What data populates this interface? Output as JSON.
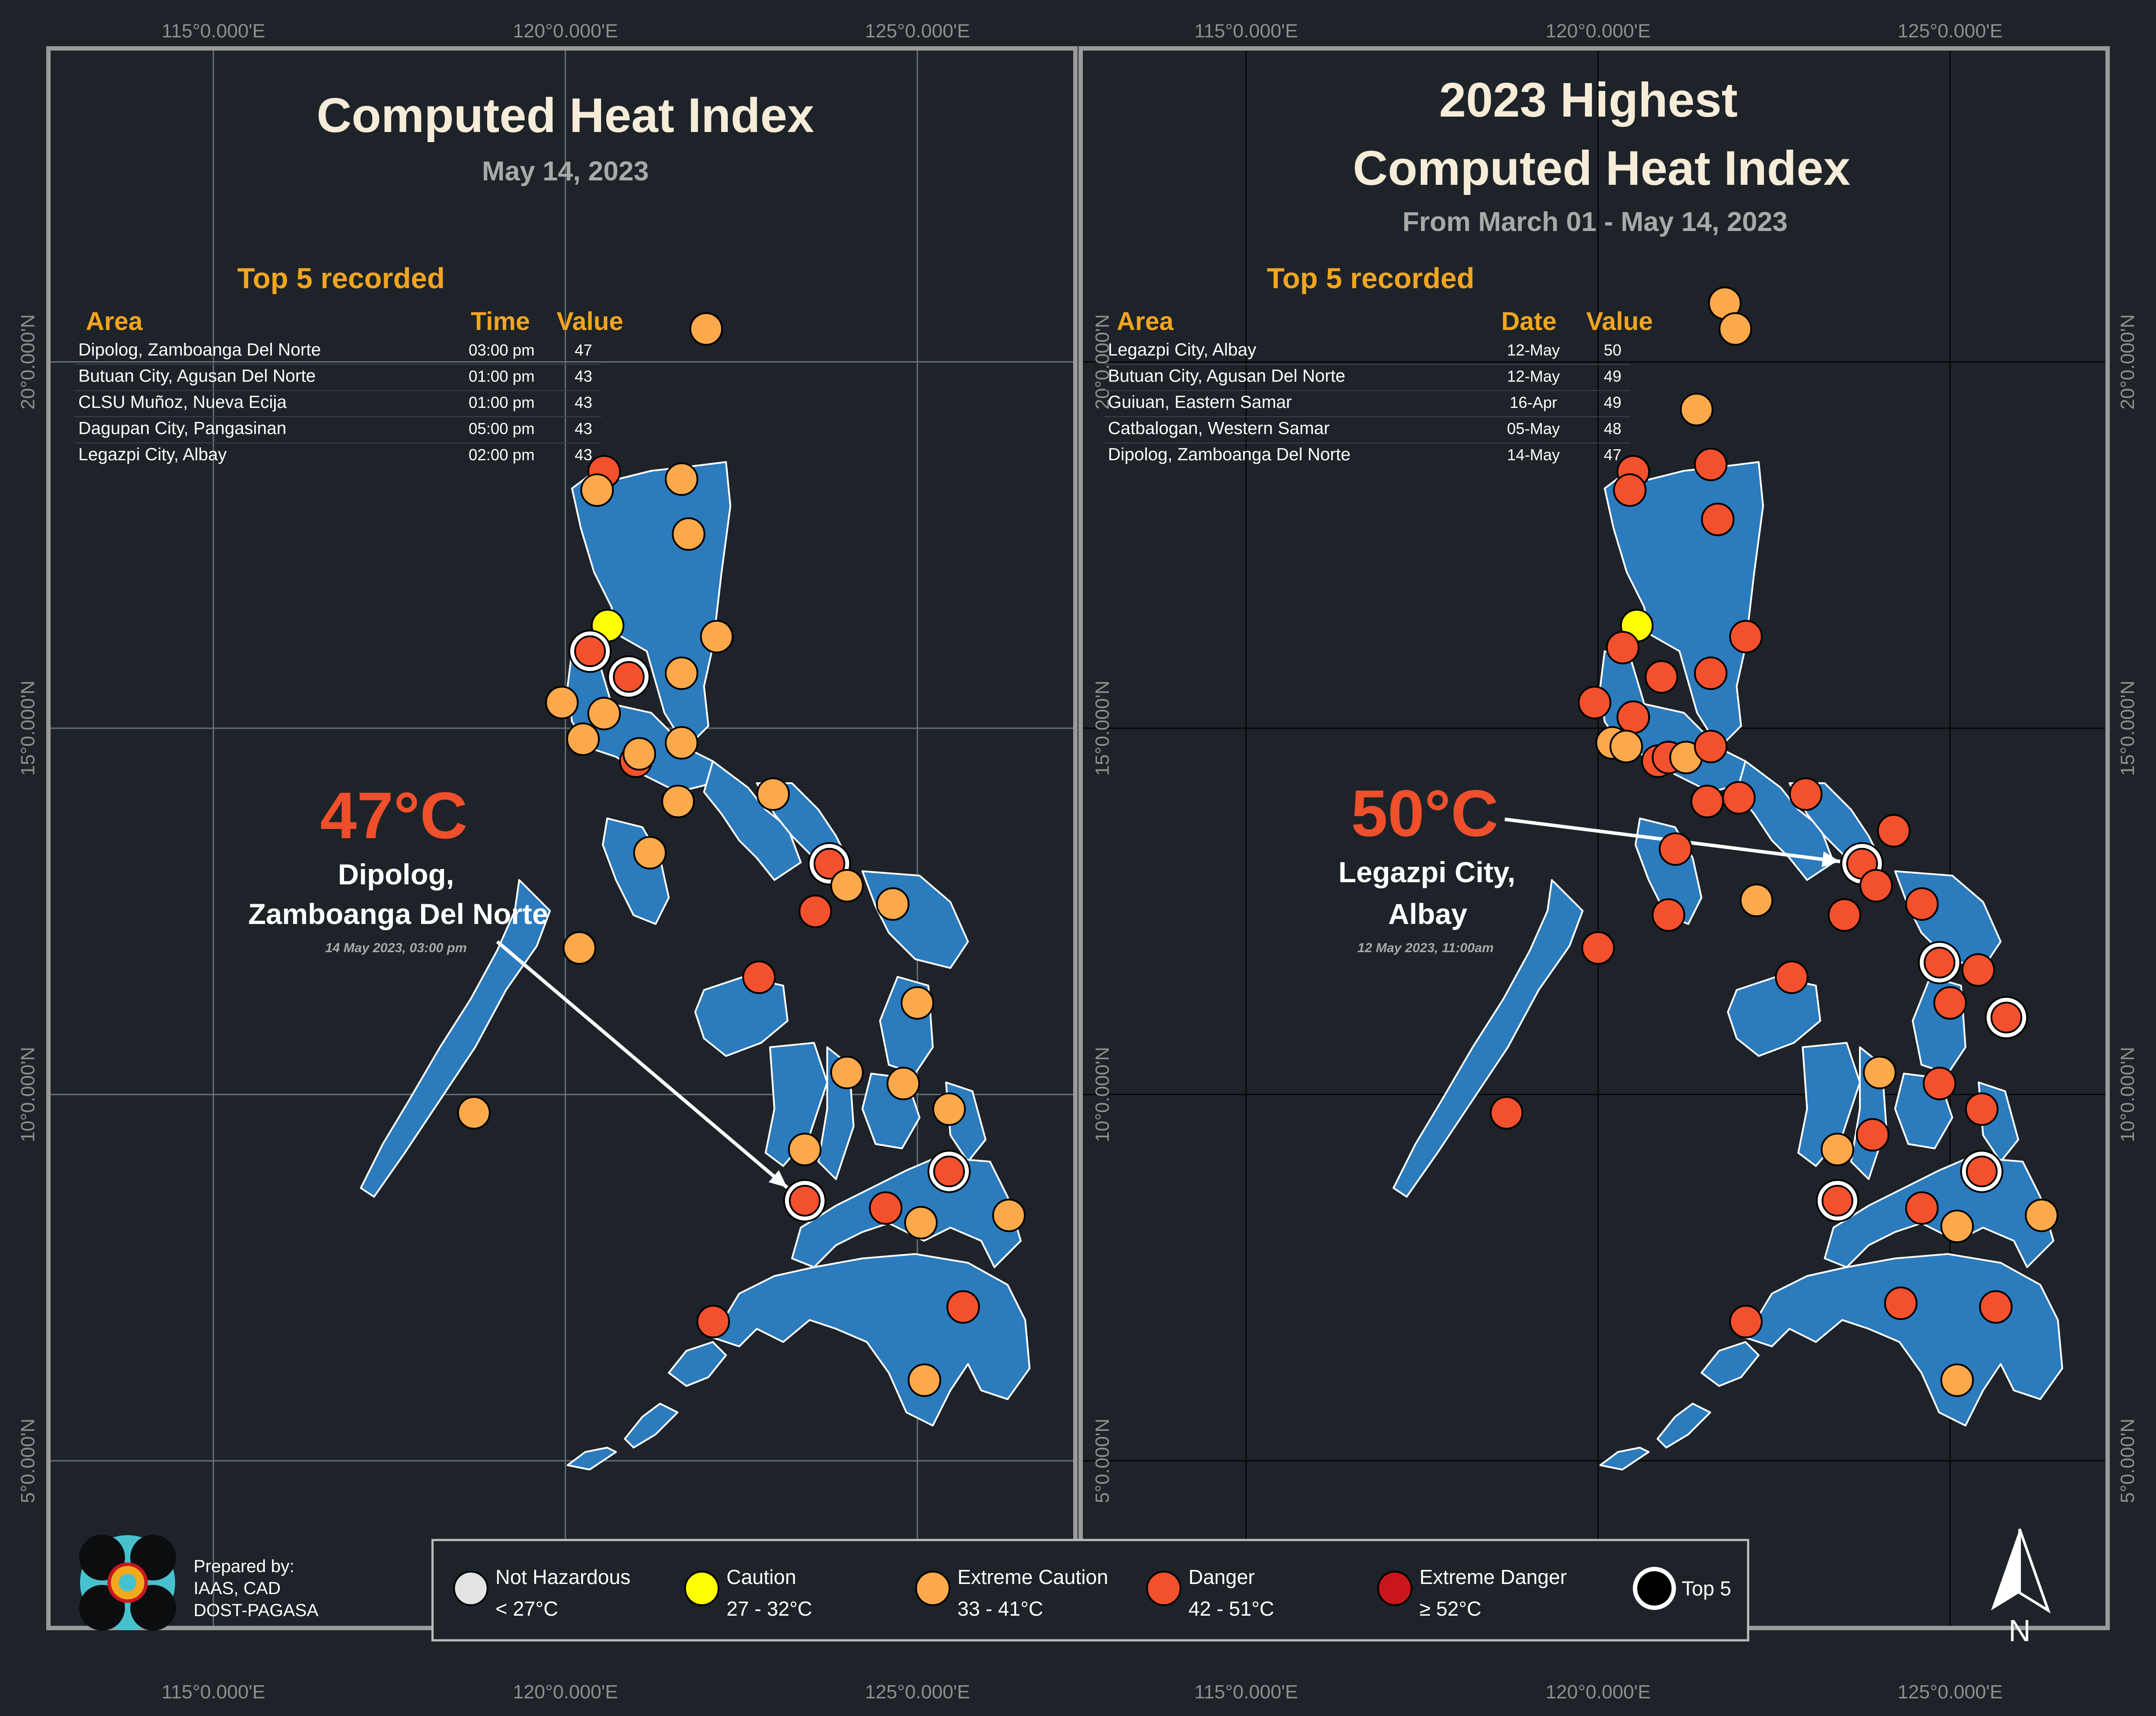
{
  "colors": {
    "background": "#1d2328",
    "land": "#2b7bbd",
    "frame": "#9a9a9a",
    "title": "#f6ecd8",
    "subtitle": "#a9a9a9",
    "accent": "#f2a521",
    "highlight_temp": "#f04f2b",
    "not_hazardous": "#e3e3e3",
    "caution": "#ffff00",
    "extreme_caution": "#fca94b",
    "danger": "#f3502d",
    "extreme_danger": "#c9161b"
  },
  "grid_labels": {
    "top": [
      "115°0.000'E",
      "120°0.000'E",
      "125°0.000'E",
      "115°0.000'E",
      "120°0.000'E",
      "125°0.000'E"
    ],
    "bottom": [
      "115°0.000'E",
      "120°0.000'E",
      "125°0.000'E",
      "115°0.000'E",
      "120°0.000'E",
      "125°0.000'E"
    ],
    "left": [
      "20°0.000'N",
      "15°0.000'N",
      "10°0.000'N",
      "5°0.000'N"
    ],
    "right": [
      "20°0.000'N",
      "15°0.000'N",
      "10°0.000'N",
      "5°0.000'N"
    ]
  },
  "left_panel": {
    "title": "Computed Heat Index",
    "subtitle": "May 14, 2023",
    "top5_title": "Top 5 recorded",
    "headers": [
      "Area",
      "Time",
      "Value"
    ],
    "rows": [
      {
        "area": "Dipolog, Zamboanga Del Norte",
        "time": "03:00 pm",
        "value": "47"
      },
      {
        "area": "Butuan City, Agusan Del Norte",
        "time": "01:00 pm",
        "value": "43"
      },
      {
        "area": "CLSU Muñoz, Nueva Ecija",
        "time": "01:00 pm",
        "value": "43"
      },
      {
        "area": "Dagupan City, Pangasinan",
        "time": "05:00 pm",
        "value": "43"
      },
      {
        "area": "Legazpi City, Albay",
        "time": "02:00 pm",
        "value": "43"
      }
    ],
    "highlight": {
      "temp": "47°C",
      "line1": "Dipolog,",
      "line2": "Zamboanga Del Norte",
      "date": "14 May 2023, 03:00 pm"
    },
    "stations": [
      {
        "lon": 122.0,
        "lat": 20.45,
        "c": "extreme_caution"
      },
      {
        "lon": 120.55,
        "lat": 18.5,
        "c": "danger"
      },
      {
        "lon": 120.45,
        "lat": 18.25,
        "c": "extreme_caution"
      },
      {
        "lon": 121.65,
        "lat": 18.4,
        "c": "extreme_caution"
      },
      {
        "lon": 121.75,
        "lat": 17.65,
        "c": "extreme_caution"
      },
      {
        "lon": 120.6,
        "lat": 16.4,
        "c": "caution"
      },
      {
        "lon": 120.35,
        "lat": 16.05,
        "c": "danger",
        "top5": true
      },
      {
        "lon": 120.9,
        "lat": 15.7,
        "c": "danger",
        "top5": true
      },
      {
        "lon": 122.15,
        "lat": 16.25,
        "c": "extreme_caution"
      },
      {
        "lon": 121.65,
        "lat": 15.75,
        "c": "extreme_caution"
      },
      {
        "lon": 119.95,
        "lat": 15.35,
        "c": "extreme_caution"
      },
      {
        "lon": 120.55,
        "lat": 15.2,
        "c": "extreme_caution"
      },
      {
        "lon": 120.25,
        "lat": 14.85,
        "c": "extreme_caution"
      },
      {
        "lon": 121.0,
        "lat": 14.55,
        "c": "danger"
      },
      {
        "lon": 121.05,
        "lat": 14.65,
        "c": "extreme_caution"
      },
      {
        "lon": 121.65,
        "lat": 14.8,
        "c": "extreme_caution"
      },
      {
        "lon": 121.6,
        "lat": 14.0,
        "c": "extreme_caution"
      },
      {
        "lon": 122.95,
        "lat": 14.1,
        "c": "extreme_caution"
      },
      {
        "lon": 121.2,
        "lat": 13.3,
        "c": "extreme_caution"
      },
      {
        "lon": 123.75,
        "lat": 13.15,
        "c": "danger",
        "top5": true
      },
      {
        "lon": 124.0,
        "lat": 12.85,
        "c": "extreme_caution"
      },
      {
        "lon": 124.65,
        "lat": 12.6,
        "c": "extreme_caution"
      },
      {
        "lon": 123.55,
        "lat": 12.5,
        "c": "danger"
      },
      {
        "lon": 120.2,
        "lat": 12.0,
        "c": "extreme_caution"
      },
      {
        "lon": 122.75,
        "lat": 11.6,
        "c": "danger"
      },
      {
        "lon": 125.0,
        "lat": 11.25,
        "c": "extreme_caution"
      },
      {
        "lon": 124.0,
        "lat": 10.3,
        "c": "extreme_caution"
      },
      {
        "lon": 124.8,
        "lat": 10.15,
        "c": "extreme_caution"
      },
      {
        "lon": 125.45,
        "lat": 9.8,
        "c": "extreme_caution"
      },
      {
        "lon": 118.7,
        "lat": 9.75,
        "c": "extreme_caution"
      },
      {
        "lon": 123.4,
        "lat": 9.25,
        "c": "extreme_caution"
      },
      {
        "lon": 125.45,
        "lat": 8.95,
        "c": "danger",
        "top5": true
      },
      {
        "lon": 123.4,
        "lat": 8.55,
        "c": "danger",
        "top5": true
      },
      {
        "lon": 124.55,
        "lat": 8.45,
        "c": "danger"
      },
      {
        "lon": 125.05,
        "lat": 8.25,
        "c": "extreme_caution"
      },
      {
        "lon": 126.3,
        "lat": 8.35,
        "c": "extreme_caution"
      },
      {
        "lon": 125.65,
        "lat": 7.1,
        "c": "danger"
      },
      {
        "lon": 122.1,
        "lat": 6.9,
        "c": "danger"
      },
      {
        "lon": 125.1,
        "lat": 6.1,
        "c": "extreme_caution"
      }
    ]
  },
  "right_panel": {
    "title_line1": "2023 Highest",
    "title_line2": "Computed Heat Index",
    "subtitle": "From March 01 - May 14, 2023",
    "top5_title": "Top 5 recorded",
    "headers": [
      "Area",
      "Date",
      "Value"
    ],
    "rows": [
      {
        "area": "Legazpi City, Albay",
        "date": "12-May",
        "value": "50"
      },
      {
        "area": "Butuan City, Agusan Del Norte",
        "date": "12-May",
        "value": "49"
      },
      {
        "area": "Guiuan, Eastern Samar",
        "date": "16-Apr",
        "value": "49"
      },
      {
        "area": "Catbalogan, Western Samar",
        "date": "05-May",
        "value": "48"
      },
      {
        "area": "Dipolog, Zamboanga Del Norte",
        "date": "14-May",
        "value": "47"
      }
    ],
    "highlight": {
      "temp": "50°C",
      "line1": "Legazpi City,",
      "line2": "Albay",
      "date": "12 May 2023, 11:00am"
    },
    "stations": [
      {
        "lon": 121.8,
        "lat": 20.8,
        "c": "extreme_caution"
      },
      {
        "lon": 121.95,
        "lat": 20.45,
        "c": "extreme_caution"
      },
      {
        "lon": 121.4,
        "lat": 19.35,
        "c": "extreme_caution"
      },
      {
        "lon": 120.5,
        "lat": 18.5,
        "c": "danger"
      },
      {
        "lon": 120.45,
        "lat": 18.25,
        "c": "danger"
      },
      {
        "lon": 121.6,
        "lat": 18.6,
        "c": "danger"
      },
      {
        "lon": 121.7,
        "lat": 17.85,
        "c": "danger"
      },
      {
        "lon": 120.55,
        "lat": 16.4,
        "c": "caution"
      },
      {
        "lon": 120.35,
        "lat": 16.1,
        "c": "danger"
      },
      {
        "lon": 122.1,
        "lat": 16.25,
        "c": "danger"
      },
      {
        "lon": 120.9,
        "lat": 15.7,
        "c": "danger"
      },
      {
        "lon": 121.6,
        "lat": 15.75,
        "c": "danger"
      },
      {
        "lon": 119.95,
        "lat": 15.35,
        "c": "danger"
      },
      {
        "lon": 120.5,
        "lat": 15.15,
        "c": "danger"
      },
      {
        "lon": 120.2,
        "lat": 14.8,
        "c": "extreme_caution"
      },
      {
        "lon": 120.4,
        "lat": 14.75,
        "c": "extreme_caution"
      },
      {
        "lon": 120.85,
        "lat": 14.55,
        "c": "danger"
      },
      {
        "lon": 121.0,
        "lat": 14.6,
        "c": "danger"
      },
      {
        "lon": 121.25,
        "lat": 14.6,
        "c": "extreme_caution"
      },
      {
        "lon": 121.6,
        "lat": 14.75,
        "c": "danger"
      },
      {
        "lon": 121.55,
        "lat": 14.0,
        "c": "danger"
      },
      {
        "lon": 122.0,
        "lat": 14.05,
        "c": "danger"
      },
      {
        "lon": 122.95,
        "lat": 14.1,
        "c": "danger"
      },
      {
        "lon": 121.1,
        "lat": 13.35,
        "c": "danger"
      },
      {
        "lon": 124.2,
        "lat": 13.6,
        "c": "danger"
      },
      {
        "lon": 123.75,
        "lat": 13.15,
        "c": "danger",
        "top5": true
      },
      {
        "lon": 123.95,
        "lat": 12.85,
        "c": "danger"
      },
      {
        "lon": 124.6,
        "lat": 12.6,
        "c": "danger"
      },
      {
        "lon": 122.25,
        "lat": 12.65,
        "c": "extreme_caution"
      },
      {
        "lon": 121.0,
        "lat": 12.45,
        "c": "danger"
      },
      {
        "lon": 123.5,
        "lat": 12.45,
        "c": "danger"
      },
      {
        "lon": 120.0,
        "lat": 12.0,
        "c": "danger"
      },
      {
        "lon": 122.75,
        "lat": 11.6,
        "c": "danger"
      },
      {
        "lon": 124.85,
        "lat": 11.8,
        "c": "danger",
        "top5": true
      },
      {
        "lon": 125.4,
        "lat": 11.7,
        "c": "danger"
      },
      {
        "lon": 125.8,
        "lat": 11.05,
        "c": "danger",
        "top5": true
      },
      {
        "lon": 125.0,
        "lat": 11.25,
        "c": "danger"
      },
      {
        "lon": 124.0,
        "lat": 10.3,
        "c": "extreme_caution"
      },
      {
        "lon": 124.85,
        "lat": 10.15,
        "c": "danger"
      },
      {
        "lon": 125.45,
        "lat": 9.8,
        "c": "danger"
      },
      {
        "lon": 118.7,
        "lat": 9.75,
        "c": "danger"
      },
      {
        "lon": 123.4,
        "lat": 9.25,
        "c": "extreme_caution"
      },
      {
        "lon": 123.9,
        "lat": 9.45,
        "c": "danger"
      },
      {
        "lon": 125.45,
        "lat": 8.95,
        "c": "danger",
        "top5": true
      },
      {
        "lon": 123.4,
        "lat": 8.55,
        "c": "danger",
        "top5": true
      },
      {
        "lon": 124.6,
        "lat": 8.45,
        "c": "danger"
      },
      {
        "lon": 125.1,
        "lat": 8.2,
        "c": "extreme_caution"
      },
      {
        "lon": 126.3,
        "lat": 8.35,
        "c": "extreme_caution"
      },
      {
        "lon": 125.65,
        "lat": 7.1,
        "c": "danger"
      },
      {
        "lon": 124.3,
        "lat": 7.15,
        "c": "danger"
      },
      {
        "lon": 122.1,
        "lat": 6.9,
        "c": "danger"
      },
      {
        "lon": 125.1,
        "lat": 6.1,
        "c": "extreme_caution"
      }
    ]
  },
  "legend": {
    "items": [
      {
        "key": "not_hazardous",
        "label": "Not Hazardous",
        "range": "< 27°C"
      },
      {
        "key": "caution",
        "label": "Caution",
        "range": "27 - 32°C"
      },
      {
        "key": "extreme_caution",
        "label": "Extreme Caution",
        "range": "33 - 41°C"
      },
      {
        "key": "danger",
        "label": "Danger",
        "range": "42 - 51°C"
      },
      {
        "key": "extreme_danger",
        "label": "Extreme Danger",
        "range": "≥ 52°C"
      },
      {
        "key": "top5",
        "label": "Top 5",
        "range": ""
      }
    ]
  },
  "credits": {
    "line1": "Prepared by:",
    "line2": "IAAS, CAD",
    "line3": "DOST-PAGASA"
  },
  "north_arrow_label": "N"
}
